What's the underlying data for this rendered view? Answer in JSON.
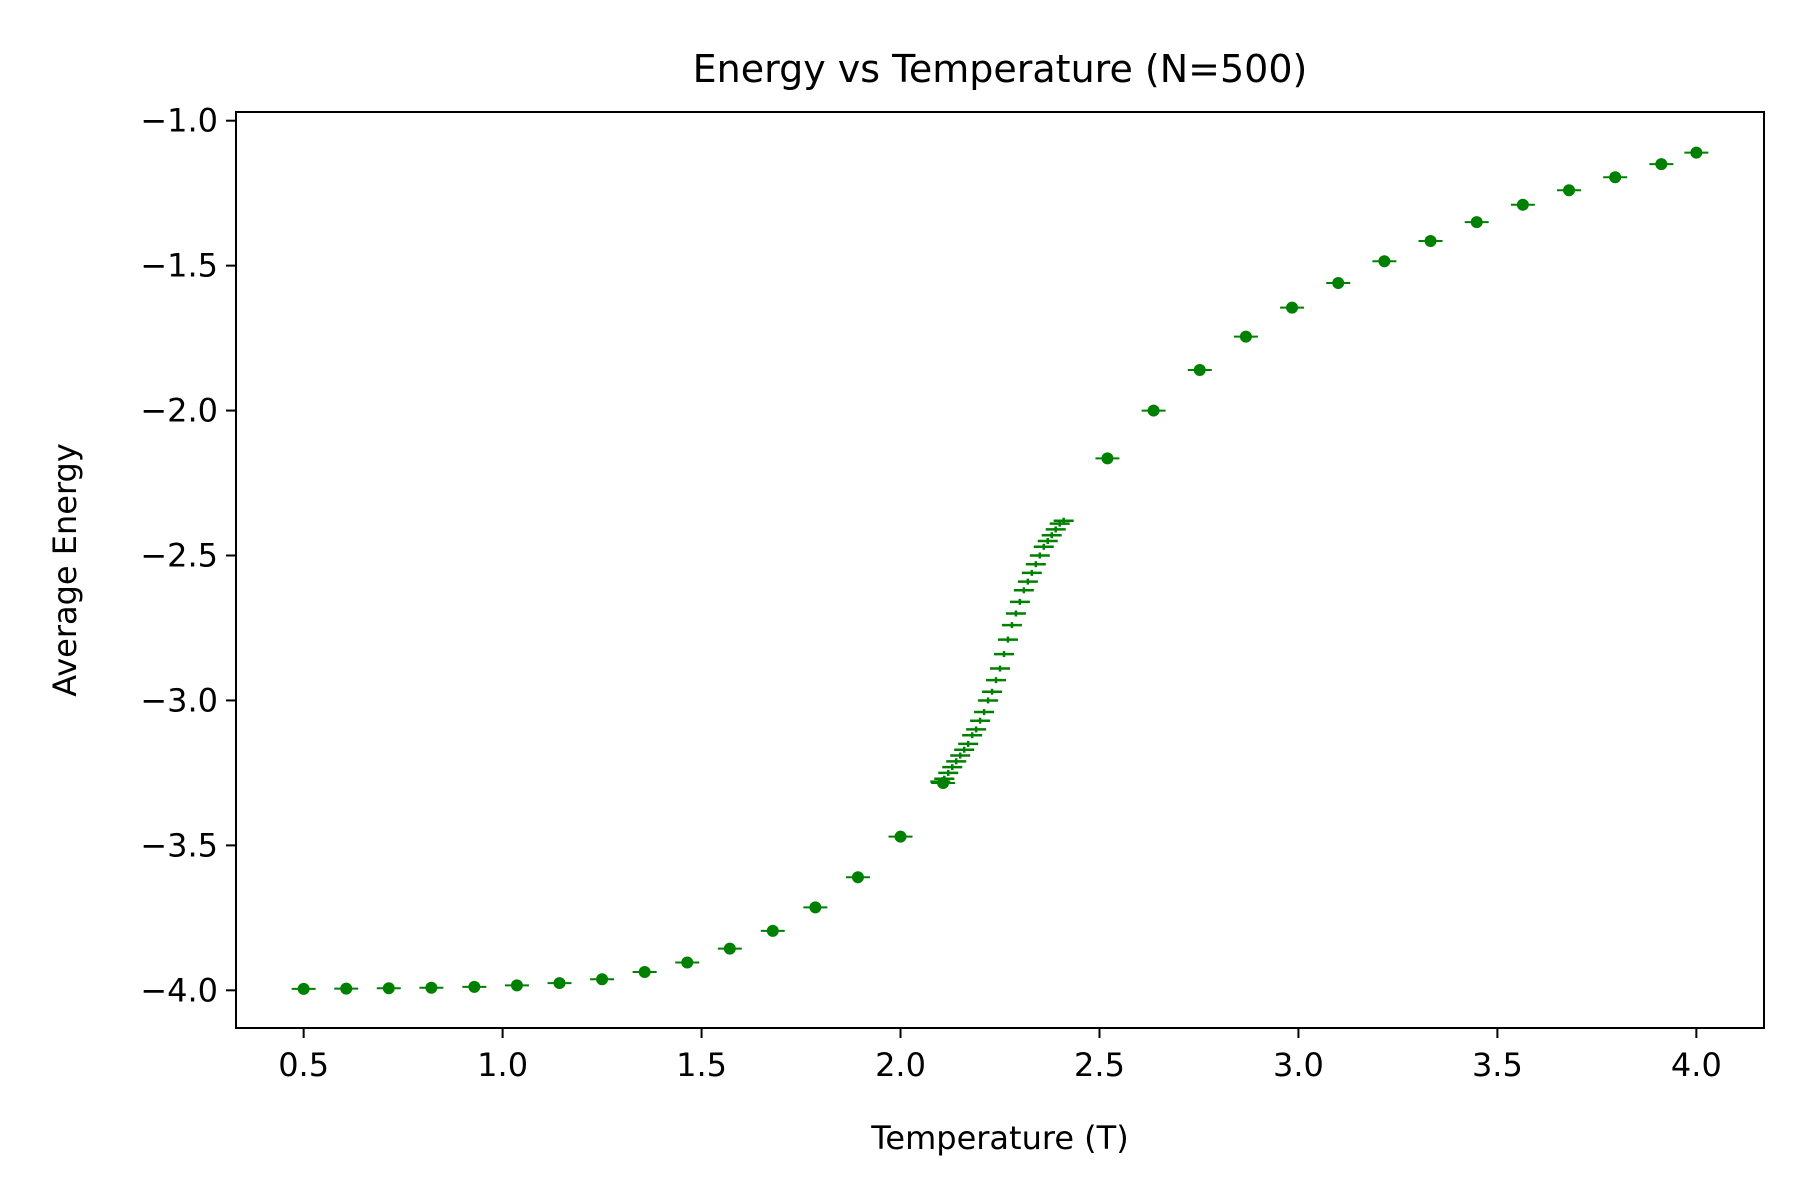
{
  "chart_data": {
    "type": "scatter",
    "title": "Energy vs Temperature (N=500)",
    "xlabel": "Temperature (T)",
    "ylabel": "Average Energy",
    "xlim": [
      0.33,
      4.17
    ],
    "ylim": [
      -4.13,
      -0.97
    ],
    "xticks": [
      0.5,
      1.0,
      1.5,
      2.0,
      2.5,
      3.0,
      3.5,
      4.0
    ],
    "yticks": [
      -4.0,
      -3.5,
      -3.0,
      -2.5,
      -2.0,
      -1.5,
      -1.0
    ],
    "grid": false,
    "legend": "none",
    "errorbars": "horizontal",
    "series": [
      {
        "color": "#008000",
        "marker": "circle",
        "points": [
          [
            0.5,
            -3.995
          ],
          [
            0.607,
            -3.994
          ],
          [
            0.714,
            -3.993
          ],
          [
            0.821,
            -3.991
          ],
          [
            0.929,
            -3.988
          ],
          [
            1.036,
            -3.983
          ],
          [
            1.143,
            -3.975
          ],
          [
            1.25,
            -3.962
          ],
          [
            1.357,
            -3.937
          ],
          [
            1.464,
            -3.904
          ],
          [
            1.571,
            -3.856
          ],
          [
            1.679,
            -3.795
          ],
          [
            1.786,
            -3.714
          ],
          [
            1.893,
            -3.61
          ],
          [
            2.0,
            -3.47
          ],
          [
            2.107,
            -3.285
          ],
          [
            2.52,
            -2.165
          ],
          [
            2.636,
            -2.0
          ],
          [
            2.752,
            -1.86
          ],
          [
            2.868,
            -1.745
          ],
          [
            2.984,
            -1.645
          ],
          [
            3.1,
            -1.56
          ],
          [
            3.216,
            -1.485
          ],
          [
            3.332,
            -1.415
          ],
          [
            3.448,
            -1.35
          ],
          [
            3.564,
            -1.29
          ],
          [
            3.68,
            -1.24
          ],
          [
            3.796,
            -1.195
          ],
          [
            3.912,
            -1.15
          ],
          [
            4.0,
            -1.11
          ]
        ]
      },
      {
        "color": "#008000",
        "marker": "plus",
        "points": [
          [
            2.1,
            -3.28
          ],
          [
            2.11,
            -3.27
          ],
          [
            2.12,
            -3.25
          ],
          [
            2.13,
            -3.23
          ],
          [
            2.14,
            -3.21
          ],
          [
            2.15,
            -3.19
          ],
          [
            2.16,
            -3.17
          ],
          [
            2.17,
            -3.15
          ],
          [
            2.18,
            -3.12
          ],
          [
            2.19,
            -3.1
          ],
          [
            2.2,
            -3.07
          ],
          [
            2.21,
            -3.04
          ],
          [
            2.22,
            -3.0
          ],
          [
            2.23,
            -2.97
          ],
          [
            2.24,
            -2.93
          ],
          [
            2.25,
            -2.89
          ],
          [
            2.26,
            -2.84
          ],
          [
            2.27,
            -2.79
          ],
          [
            2.28,
            -2.74
          ],
          [
            2.29,
            -2.7
          ],
          [
            2.3,
            -2.66
          ],
          [
            2.31,
            -2.62
          ],
          [
            2.32,
            -2.59
          ],
          [
            2.33,
            -2.56
          ],
          [
            2.34,
            -2.53
          ],
          [
            2.35,
            -2.5
          ],
          [
            2.36,
            -2.47
          ],
          [
            2.37,
            -2.45
          ],
          [
            2.38,
            -2.43
          ],
          [
            2.39,
            -2.41
          ],
          [
            2.4,
            -2.39
          ],
          [
            2.41,
            -2.38
          ]
        ]
      }
    ]
  }
}
